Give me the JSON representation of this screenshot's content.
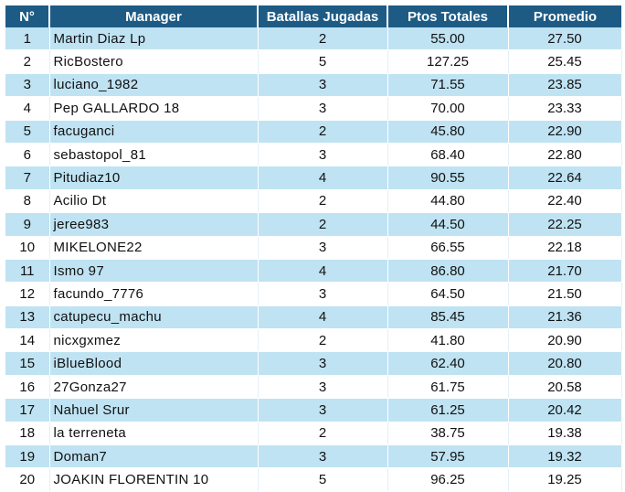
{
  "header": {
    "col_num": "N°",
    "col_manager": "Manager",
    "col_batallas": "Batallas Jugadas",
    "col_ptos": "Ptos Totales",
    "col_promedio": "Promedio"
  },
  "rows": [
    {
      "n": "1",
      "manager": "Martin Diaz Lp",
      "batallas": "2",
      "ptos": "55.00",
      "promedio": "27.50"
    },
    {
      "n": "2",
      "manager": "RicBostero",
      "batallas": "5",
      "ptos": "127.25",
      "promedio": "25.45"
    },
    {
      "n": "3",
      "manager": "luciano_1982",
      "batallas": "3",
      "ptos": "71.55",
      "promedio": "23.85"
    },
    {
      "n": "4",
      "manager": "Pep GALLARDO 18",
      "batallas": "3",
      "ptos": "70.00",
      "promedio": "23.33"
    },
    {
      "n": "5",
      "manager": "facuganci",
      "batallas": "2",
      "ptos": "45.80",
      "promedio": "22.90"
    },
    {
      "n": "6",
      "manager": "sebastopol_81",
      "batallas": "3",
      "ptos": "68.40",
      "promedio": "22.80"
    },
    {
      "n": "7",
      "manager": "Pitudiaz10",
      "batallas": "4",
      "ptos": "90.55",
      "promedio": "22.64"
    },
    {
      "n": "8",
      "manager": "Acilio Dt",
      "batallas": "2",
      "ptos": "44.80",
      "promedio": "22.40"
    },
    {
      "n": "9",
      "manager": "jeree983",
      "batallas": "2",
      "ptos": "44.50",
      "promedio": "22.25"
    },
    {
      "n": "10",
      "manager": "MIKELONE22",
      "batallas": "3",
      "ptos": "66.55",
      "promedio": "22.18"
    },
    {
      "n": "11",
      "manager": "Ismo 97",
      "batallas": "4",
      "ptos": "86.80",
      "promedio": "21.70"
    },
    {
      "n": "12",
      "manager": "facundo_7776",
      "batallas": "3",
      "ptos": "64.50",
      "promedio": "21.50"
    },
    {
      "n": "13",
      "manager": "catupecu_machu",
      "batallas": "4",
      "ptos": "85.45",
      "promedio": "21.36"
    },
    {
      "n": "14",
      "manager": "nicxgxmez",
      "batallas": "2",
      "ptos": "41.80",
      "promedio": "20.90"
    },
    {
      "n": "15",
      "manager": "iBlueBlood",
      "batallas": "3",
      "ptos": "62.40",
      "promedio": "20.80"
    },
    {
      "n": "16",
      "manager": "27Gonza27",
      "batallas": "3",
      "ptos": "61.75",
      "promedio": "20.58"
    },
    {
      "n": "17",
      "manager": "Nahuel Srur",
      "batallas": "3",
      "ptos": "61.25",
      "promedio": "20.42"
    },
    {
      "n": "18",
      "manager": "la terreneta",
      "batallas": "2",
      "ptos": "38.75",
      "promedio": "19.38"
    },
    {
      "n": "19",
      "manager": "Doman7",
      "batallas": "3",
      "ptos": "57.95",
      "promedio": "19.32"
    },
    {
      "n": "20",
      "manager": "JOAKIN FLORENTIN 10",
      "batallas": "5",
      "ptos": "96.25",
      "promedio": "19.25"
    }
  ],
  "colors": {
    "header_bg": "#1d5b85",
    "header_text": "#ffffff",
    "row_stripe": "#bfe3f3",
    "row_plain": "#ffffff"
  }
}
